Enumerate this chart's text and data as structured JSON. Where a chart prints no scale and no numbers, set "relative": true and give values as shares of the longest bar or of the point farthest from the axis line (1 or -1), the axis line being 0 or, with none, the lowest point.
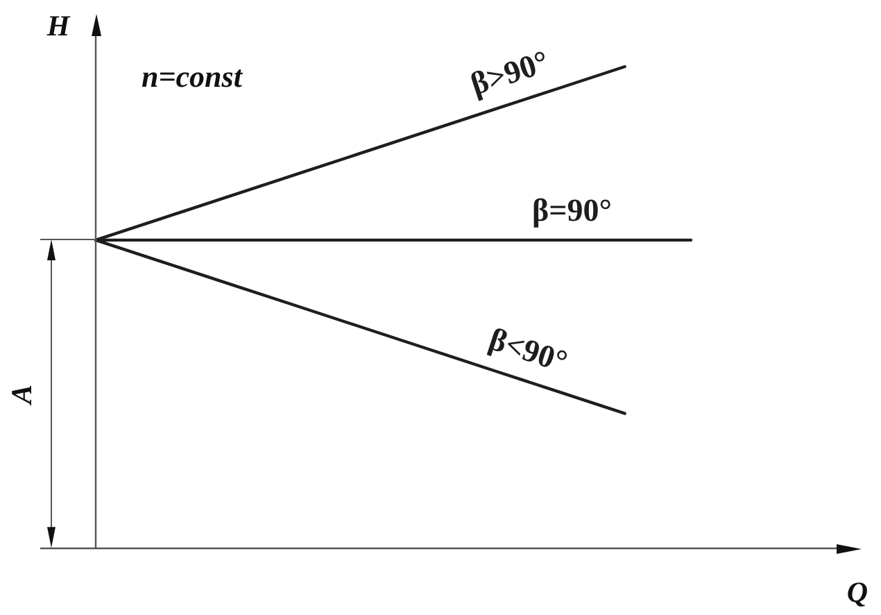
{
  "chart_data": {
    "type": "line",
    "relative": true,
    "xlabel": "Q",
    "ylabel": "H",
    "annotations": [
      "n=const",
      "A"
    ],
    "categories": [
      null,
      null,
      null,
      null,
      null,
      null,
      null,
      null,
      null,
      null
    ],
    "series": [
      {
        "name": "β>90°",
        "color": "#1e1e1e",
        "values": [
          0.64,
          0.685,
          0.73,
          0.775,
          0.82,
          0.865,
          0.91,
          0.955,
          1,
          null
        ]
      },
      {
        "name": "β=90°",
        "color": "#1e1e1e",
        "values": [
          0.64,
          0.64,
          0.64,
          0.64,
          0.64,
          0.64,
          0.64,
          0.64,
          0.64,
          0.64
        ]
      },
      {
        "name": "β<90°",
        "color": "#1e1e1e",
        "values": [
          0.64,
          0.595,
          0.55,
          0.505,
          0.46,
          0.415,
          0.37,
          0.325,
          0.28,
          null
        ]
      }
    ],
    "legend": false,
    "marker": "none",
    "line_style": "solid"
  }
}
